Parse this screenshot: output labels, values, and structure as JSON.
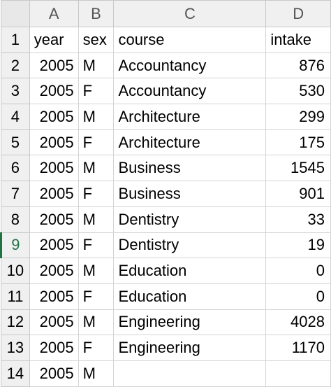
{
  "columns": [
    "A",
    "B",
    "C",
    "D"
  ],
  "header_row": {
    "row": "1",
    "a": "year",
    "b": "sex",
    "c": "course",
    "d": "intake"
  },
  "rows": [
    {
      "row": "2",
      "year": "2005",
      "sex": "M",
      "course": "Accountancy",
      "intake": "876"
    },
    {
      "row": "3",
      "year": "2005",
      "sex": "F",
      "course": "Accountancy",
      "intake": "530"
    },
    {
      "row": "4",
      "year": "2005",
      "sex": "M",
      "course": "Architecture",
      "intake": "299"
    },
    {
      "row": "5",
      "year": "2005",
      "sex": "F",
      "course": "Architecture",
      "intake": "175"
    },
    {
      "row": "6",
      "year": "2005",
      "sex": "M",
      "course": "Business",
      "intake": "1545"
    },
    {
      "row": "7",
      "year": "2005",
      "sex": "F",
      "course": "Business",
      "intake": "901"
    },
    {
      "row": "8",
      "year": "2005",
      "sex": "M",
      "course": "Dentistry",
      "intake": "33"
    },
    {
      "row": "9",
      "year": "2005",
      "sex": "F",
      "course": "Dentistry",
      "intake": "19"
    },
    {
      "row": "10",
      "year": "2005",
      "sex": "M",
      "course": "Education",
      "intake": "0"
    },
    {
      "row": "11",
      "year": "2005",
      "sex": "F",
      "course": "Education",
      "intake": "0"
    },
    {
      "row": "12",
      "year": "2005",
      "sex": "M",
      "course": "Engineering",
      "intake": "4028"
    },
    {
      "row": "13",
      "year": "2005",
      "sex": "F",
      "course": "Engineering",
      "intake": "1170"
    },
    {
      "row": "14",
      "year": "2005",
      "sex": "M",
      "course": "",
      "intake": ""
    }
  ],
  "active_row": "9",
  "colors": {
    "header_bg": "#f0f0f0",
    "grid": "#d4d4d4",
    "active_accent": "#217346"
  }
}
